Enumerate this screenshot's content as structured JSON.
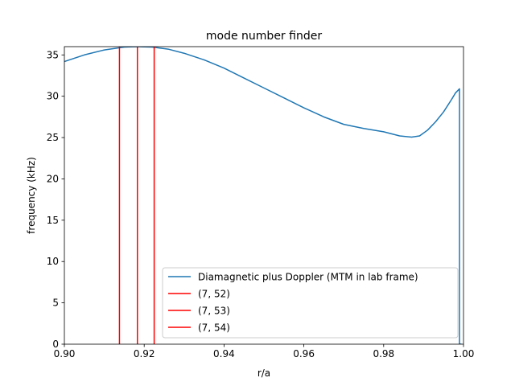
{
  "chart_data": {
    "type": "line",
    "title": "mode number finder",
    "xlabel": "r/a",
    "ylabel": "frequency (kHz)",
    "xlim": [
      0.9,
      1.0
    ],
    "ylim": [
      0,
      36
    ],
    "xticks": [
      "0.90",
      "0.92",
      "0.94",
      "0.96",
      "0.98",
      "1.00"
    ],
    "yticks": [
      "0",
      "5",
      "10",
      "15",
      "20",
      "25",
      "30",
      "35"
    ],
    "grid": false,
    "legend_position": "lower-right",
    "series": [
      {
        "name": "Diamagnetic plus Doppler (MTM in lab frame)",
        "color": "#1f77b4",
        "x": [
          0.9,
          0.905,
          0.91,
          0.915,
          0.918,
          0.922,
          0.926,
          0.93,
          0.935,
          0.94,
          0.945,
          0.95,
          0.955,
          0.96,
          0.965,
          0.97,
          0.975,
          0.98,
          0.984,
          0.987,
          0.989,
          0.991,
          0.993,
          0.995,
          0.997,
          0.998,
          0.999,
          0.999,
          0.9995
        ],
        "y": [
          34.2,
          35.0,
          35.6,
          35.95,
          36.0,
          35.95,
          35.7,
          35.2,
          34.4,
          33.4,
          32.2,
          31.0,
          29.8,
          28.6,
          27.5,
          26.6,
          26.1,
          25.7,
          25.2,
          25.05,
          25.2,
          25.9,
          26.9,
          28.1,
          29.6,
          30.4,
          30.9,
          0.0,
          0.0
        ]
      },
      {
        "name": "(7, 52)",
        "color": "#ff0000",
        "type": "vline",
        "x": [
          0.9138,
          0.9138
        ],
        "y": [
          0,
          36
        ]
      },
      {
        "name": "(7, 53)",
        "color": "#ff0000",
        "type": "vline",
        "x": [
          0.9183,
          0.9183
        ],
        "y": [
          0,
          36
        ]
      },
      {
        "name": "(7, 54)",
        "color": "#ff0000",
        "type": "vline",
        "x": [
          0.9225,
          0.9225
        ],
        "y": [
          0,
          36
        ]
      }
    ]
  }
}
